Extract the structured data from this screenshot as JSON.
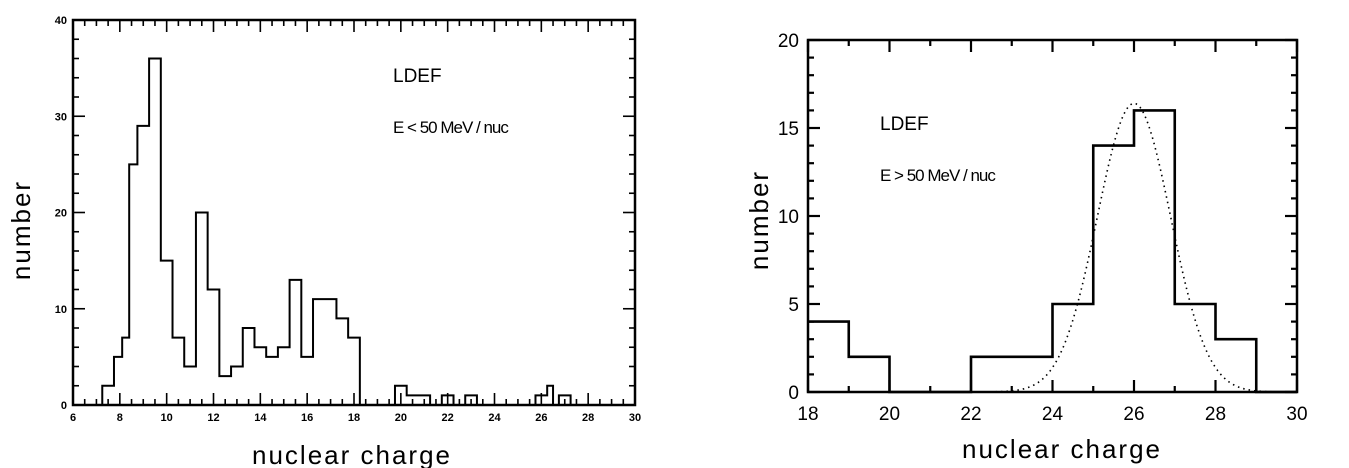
{
  "chart_data": [
    {
      "type": "bar",
      "xlabel": "nuclear charge",
      "ylabel": "number",
      "xlim": [
        6,
        30
      ],
      "ylim": [
        0,
        40
      ],
      "xticks": [
        6,
        8,
        10,
        12,
        14,
        16,
        18,
        20,
        22,
        24,
        26,
        28,
        30
      ],
      "yticks": [
        0,
        10,
        20,
        30,
        40
      ],
      "bin_width": 0.5,
      "bins": [
        {
          "x": 7.0,
          "y": 0
        },
        {
          "x": 7.5,
          "y": 5
        },
        {
          "x": 7.75,
          "y": 7
        },
        {
          "x": 8.25,
          "y": 25
        },
        {
          "x": 8.75,
          "y": 29
        },
        {
          "x": 9.25,
          "y": 36
        },
        {
          "x": 9.75,
          "y": 15
        },
        {
          "x": 10.25,
          "y": 7
        },
        {
          "x": 10.75,
          "y": 4
        },
        {
          "x": 11.25,
          "y": 20
        },
        {
          "x": 11.75,
          "y": 12
        },
        {
          "x": 12.25,
          "y": 3
        },
        {
          "x": 12.75,
          "y": 4
        },
        {
          "x": 13.25,
          "y": 8
        },
        {
          "x": 13.75,
          "y": 6
        },
        {
          "x": 14.25,
          "y": 5
        },
        {
          "x": 14.75,
          "y": 6
        },
        {
          "x": 15.25,
          "y": 13
        },
        {
          "x": 15.75,
          "y": 5
        },
        {
          "x": 16.25,
          "y": 11
        },
        {
          "x": 16.75,
          "y": 11
        },
        {
          "x": 17.25,
          "y": 9
        },
        {
          "x": 17.75,
          "y": 7
        },
        {
          "x": 18.25,
          "y": 0
        }
      ],
      "steps": [
        [
          7.0,
          0
        ],
        [
          7.25,
          2
        ],
        [
          7.75,
          5
        ],
        [
          8.1,
          7
        ],
        [
          8.4,
          25
        ],
        [
          8.75,
          29
        ],
        [
          9.25,
          36
        ],
        [
          9.75,
          15
        ],
        [
          10.25,
          7
        ],
        [
          10.75,
          4
        ],
        [
          11.25,
          20
        ],
        [
          11.75,
          12
        ],
        [
          12.25,
          3
        ],
        [
          12.75,
          4
        ],
        [
          13.25,
          8
        ],
        [
          13.75,
          6
        ],
        [
          14.25,
          5
        ],
        [
          14.75,
          6
        ],
        [
          15.25,
          13
        ],
        [
          15.75,
          5
        ],
        [
          16.25,
          11
        ],
        [
          16.75,
          11
        ],
        [
          17.25,
          9
        ],
        [
          17.75,
          7
        ],
        [
          18.25,
          0
        ],
        [
          19.75,
          2
        ],
        [
          20.25,
          1
        ],
        [
          20.75,
          1
        ],
        [
          21.25,
          0
        ],
        [
          21.75,
          1
        ],
        [
          22.25,
          0
        ],
        [
          22.75,
          1
        ],
        [
          23.25,
          0
        ],
        [
          25.75,
          1
        ],
        [
          26.25,
          2
        ],
        [
          26.5,
          0
        ],
        [
          26.75,
          1
        ],
        [
          27.25,
          0
        ],
        [
          30,
          0
        ]
      ],
      "annotations": [
        "LDEF",
        "E < 50 MeV / nuc"
      ]
    },
    {
      "type": "bar",
      "xlabel": "nuclear charge",
      "ylabel": "number",
      "xlim": [
        18,
        30
      ],
      "ylim": [
        0,
        20
      ],
      "xticks": [
        18,
        20,
        22,
        24,
        26,
        28,
        30
      ],
      "yticks": [
        0,
        5,
        10,
        15,
        20
      ],
      "bins": [
        {
          "x0": 18,
          "x1": 19,
          "y": 4
        },
        {
          "x0": 19,
          "x1": 20,
          "y": 2
        },
        {
          "x0": 20,
          "x1": 22,
          "y": 0
        },
        {
          "x0": 22,
          "x1": 24,
          "y": 2
        },
        {
          "x0": 24,
          "x1": 25,
          "y": 5
        },
        {
          "x0": 25,
          "x1": 26,
          "y": 14
        },
        {
          "x0": 26,
          "x1": 27,
          "y": 16
        },
        {
          "x0": 27,
          "x1": 28,
          "y": 5
        },
        {
          "x0": 28,
          "x1": 29,
          "y": 3
        },
        {
          "x0": 29,
          "x1": 30,
          "y": 0
        }
      ],
      "fit": {
        "type": "gaussian",
        "mean": 26,
        "sigma": 0.9,
        "amplitude": 16.4
      },
      "annotations": [
        "LDEF",
        "E > 50 MeV / nuc"
      ]
    }
  ]
}
